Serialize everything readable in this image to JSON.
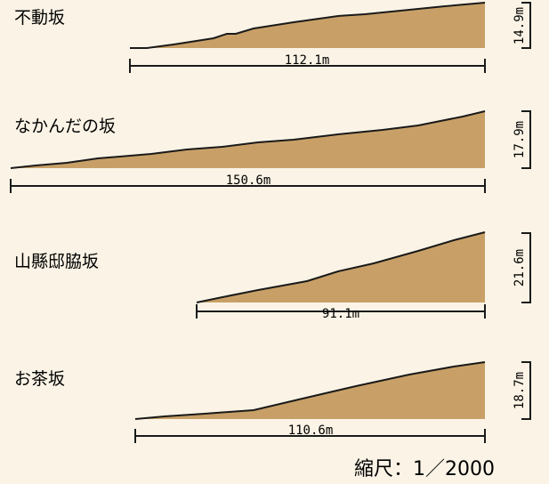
{
  "slopes": [
    {
      "name": "不動坂",
      "length": "112.1m",
      "height": "14.9m"
    },
    {
      "name": "なかんだの坂",
      "length": "150.6m",
      "height": "17.9m"
    },
    {
      "name": "山縣邸脇坂",
      "length": "91.1m",
      "height": "21.6m"
    },
    {
      "name": "お茶坂",
      "length": "110.6m",
      "height": "18.7m"
    }
  ],
  "scale_label": "縮尺：1／2000",
  "colors": {
    "background": "#fbf4e6",
    "fill": "#c8a067",
    "stroke": "#1a1a1a"
  }
}
